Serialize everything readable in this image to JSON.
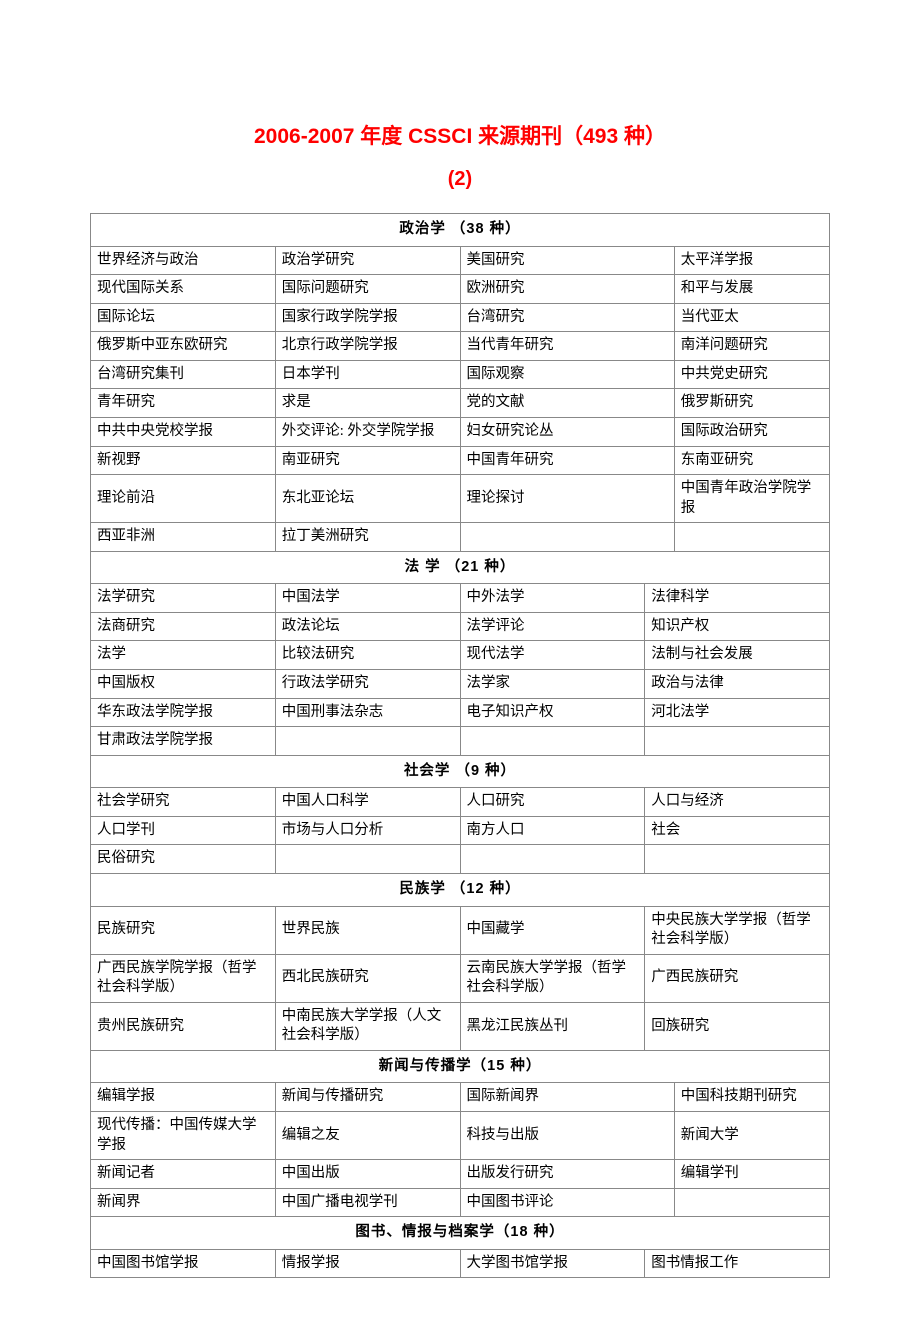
{
  "title": "2006-2007 年度 CSSCI 来源期刊（493 种）",
  "subtitle": "(2)",
  "sections": [
    {
      "header": "政治学   （38 种）",
      "split": "a",
      "rows": [
        [
          "世界经济与政治",
          "政治学研究",
          "美国研究",
          "太平洋学报"
        ],
        [
          "现代国际关系",
          "国际问题研究",
          "欧洲研究",
          "和平与发展"
        ],
        [
          "国际论坛",
          "国家行政学院学报",
          "台湾研究",
          "当代亚太"
        ],
        [
          "俄罗斯中亚东欧研究",
          "北京行政学院学报",
          "当代青年研究",
          "南洋问题研究"
        ],
        [
          "台湾研究集刊",
          "日本学刊",
          "国际观察",
          "中共党史研究"
        ],
        [
          "青年研究",
          "求是",
          "党的文献",
          "俄罗斯研究"
        ],
        [
          "中共中央党校学报",
          "外交评论: 外交学院学报",
          "妇女研究论丛",
          "国际政治研究"
        ],
        [
          "新视野",
          "南亚研究",
          "中国青年研究",
          "东南亚研究"
        ],
        [
          "理论前沿",
          "东北亚论坛",
          "理论探讨",
          "中国青年政治学院学报"
        ],
        [
          "西亚非洲",
          "拉丁美洲研究",
          "",
          ""
        ]
      ]
    },
    {
      "header": "法  学   （21 种）",
      "split": "b",
      "rows": [
        [
          "法学研究",
          "中国法学",
          "中外法学",
          "法律科学"
        ],
        [
          "法商研究",
          "政法论坛",
          "法学评论",
          "知识产权"
        ],
        [
          "法学",
          "比较法研究",
          "现代法学",
          "法制与社会发展"
        ],
        [
          "中国版权",
          "行政法学研究",
          "法学家",
          "政治与法律"
        ],
        [
          "华东政法学院学报",
          "中国刑事法杂志",
          "电子知识产权",
          "河北法学"
        ],
        [
          "甘肃政法学院学报",
          "",
          "",
          ""
        ]
      ]
    },
    {
      "header": "社会学   （9 种）",
      "split": "b",
      "rows": [
        [
          "社会学研究",
          "中国人口科学",
          "人口研究",
          "人口与经济"
        ],
        [
          "人口学刊",
          "市场与人口分析",
          "南方人口",
          "社会"
        ],
        [
          "民俗研究",
          "",
          "",
          ""
        ]
      ]
    },
    {
      "header": "民族学  （12 种）",
      "split": "b",
      "rows": [
        [
          "民族研究",
          "世界民族",
          "中国藏学",
          "中央民族大学学报（哲学社会科学版）"
        ],
        [
          "广西民族学院学报（哲学社会科学版）",
          "西北民族研究",
          "云南民族大学学报（哲学社会科学版）",
          "广西民族研究"
        ],
        [
          "贵州民族研究",
          "中南民族大学学报（人文社会科学版）",
          "黑龙江民族丛刊",
          "回族研究"
        ]
      ]
    },
    {
      "header": "新闻与传播学（15 种）",
      "split": "a",
      "rows": [
        [
          "编辑学报",
          "新闻与传播研究",
          "国际新闻界",
          "中国科技期刊研究"
        ],
        [
          "现代传播：中国传媒大学学报",
          "编辑之友",
          "科技与出版",
          "新闻大学"
        ],
        [
          "新闻记者",
          "中国出版",
          "出版发行研究",
          "编辑学刊"
        ],
        [
          "新闻界",
          "中国广播电视学刊",
          "中国图书评论",
          ""
        ]
      ]
    },
    {
      "header": "图书、情报与档案学（18 种）",
      "split": "b",
      "rows": [
        [
          "中国图书馆学报",
          "情报学报",
          "大学图书馆学报",
          "图书情报工作"
        ]
      ]
    }
  ]
}
